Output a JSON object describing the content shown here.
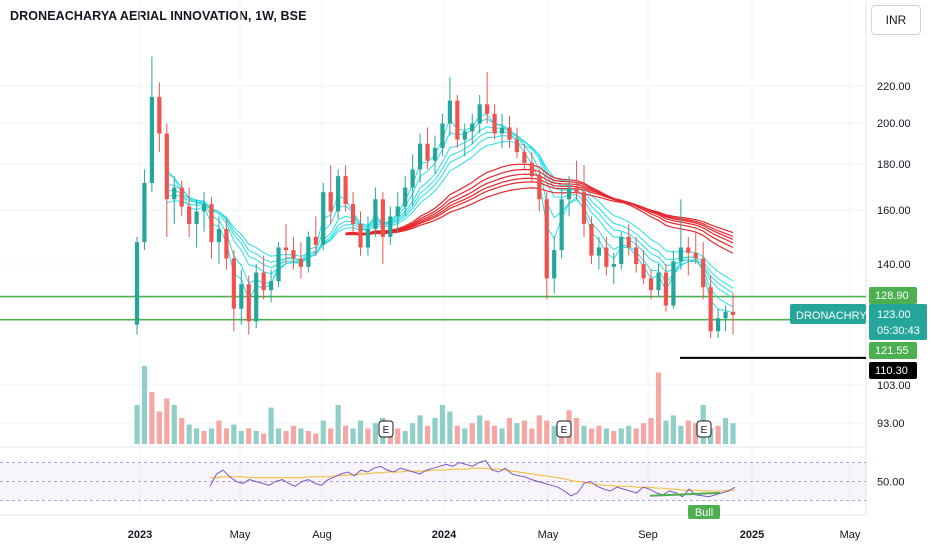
{
  "header": {
    "title": "DRONEACHARYA AERIAL INNOVATION, 1W, BSE",
    "currency": "INR"
  },
  "chart_data": {
    "type": "candlestick",
    "price_axis": {
      "ticks": [
        "220.00",
        "200.00",
        "180.00",
        "160.00",
        "140.00",
        "103.00",
        "93.00"
      ],
      "scale": "log"
    },
    "time_axis": [
      {
        "label": "2023",
        "bold": true
      },
      {
        "label": "May",
        "bold": false
      },
      {
        "label": "Aug",
        "bold": false
      },
      {
        "label": "2024",
        "bold": true
      },
      {
        "label": "May",
        "bold": false
      },
      {
        "label": "Sep",
        "bold": false
      },
      {
        "label": "2025",
        "bold": true
      },
      {
        "label": "May",
        "bold": false
      }
    ],
    "price_badges": {
      "upper_line": "128.90",
      "symbol": "DRONACHRYA",
      "last_price": "123.00",
      "countdown": "05:30:43",
      "lower_line": "121.55",
      "support_line": "110.30"
    },
    "horizontal_lines": [
      {
        "price": 128.9,
        "color": "#4caf50"
      },
      {
        "price": 121.55,
        "color": "#4caf50"
      },
      {
        "price": 110.3,
        "color": "#000000"
      }
    ],
    "candles": [
      [
        120,
        150,
        117,
        148
      ],
      [
        148,
        178,
        145,
        172
      ],
      [
        172,
        237,
        168,
        214
      ],
      [
        214,
        222,
        186,
        195
      ],
      [
        195,
        200,
        150,
        165
      ],
      [
        165,
        175,
        155,
        170
      ],
      [
        170,
        173,
        158,
        162
      ],
      [
        162,
        170,
        150,
        155
      ],
      [
        155,
        165,
        146,
        160
      ],
      [
        160,
        168,
        152,
        163
      ],
      [
        163,
        166,
        142,
        148
      ],
      [
        148,
        158,
        140,
        153
      ],
      [
        153,
        157,
        138,
        142
      ],
      [
        142,
        145,
        118,
        125
      ],
      [
        125,
        138,
        120,
        133
      ],
      [
        133,
        136,
        117,
        121
      ],
      [
        121,
        140,
        119,
        137
      ],
      [
        137,
        143,
        128,
        131
      ],
      [
        131,
        138,
        127,
        134
      ],
      [
        134,
        148,
        132,
        146
      ],
      [
        146,
        155,
        140,
        145
      ],
      [
        145,
        150,
        138,
        142
      ],
      [
        142,
        148,
        135,
        139
      ],
      [
        139,
        152,
        137,
        150
      ],
      [
        150,
        158,
        143,
        147
      ],
      [
        147,
        172,
        145,
        168
      ],
      [
        168,
        180,
        155,
        160
      ],
      [
        160,
        178,
        157,
        175
      ],
      [
        175,
        180,
        160,
        163
      ],
      [
        163,
        168,
        152,
        155
      ],
      [
        155,
        160,
        143,
        146
      ],
      [
        146,
        158,
        143,
        153
      ],
      [
        153,
        170,
        150,
        165
      ],
      [
        165,
        168,
        140,
        150
      ],
      [
        150,
        162,
        147,
        158
      ],
      [
        158,
        168,
        152,
        162
      ],
      [
        162,
        175,
        158,
        170
      ],
      [
        170,
        185,
        162,
        178
      ],
      [
        178,
        195,
        172,
        190
      ],
      [
        190,
        198,
        178,
        182
      ],
      [
        182,
        194,
        176,
        188
      ],
      [
        188,
        205,
        184,
        200
      ],
      [
        200,
        225,
        194,
        212
      ],
      [
        212,
        215,
        188,
        192
      ],
      [
        192,
        200,
        184,
        196
      ],
      [
        196,
        205,
        190,
        200
      ],
      [
        200,
        215,
        195,
        210
      ],
      [
        210,
        228,
        200,
        205
      ],
      [
        205,
        210,
        192,
        195
      ],
      [
        195,
        205,
        188,
        198
      ],
      [
        198,
        204,
        188,
        192
      ],
      [
        192,
        198,
        183,
        186
      ],
      [
        186,
        190,
        178,
        181
      ],
      [
        181,
        186,
        172,
        175
      ],
      [
        175,
        178,
        160,
        165
      ],
      [
        165,
        168,
        128,
        135
      ],
      [
        135,
        150,
        130,
        145
      ],
      [
        145,
        170,
        142,
        165
      ],
      [
        165,
        175,
        158,
        170
      ],
      [
        170,
        182,
        165,
        168
      ],
      [
        168,
        180,
        150,
        155
      ],
      [
        155,
        158,
        140,
        143
      ],
      [
        143,
        150,
        138,
        146
      ],
      [
        146,
        150,
        136,
        139
      ],
      [
        139,
        144,
        133,
        140
      ],
      [
        140,
        152,
        138,
        150
      ],
      [
        150,
        155,
        143,
        146
      ],
      [
        146,
        150,
        137,
        140
      ],
      [
        140,
        145,
        133,
        135
      ],
      [
        135,
        138,
        128,
        131
      ],
      [
        131,
        140,
        129,
        137
      ],
      [
        137,
        140,
        124,
        126
      ],
      [
        126,
        145,
        125,
        141
      ],
      [
        141,
        165,
        138,
        146
      ],
      [
        146,
        150,
        136,
        144
      ],
      [
        144,
        152,
        140,
        142
      ],
      [
        142,
        148,
        128,
        132
      ],
      [
        132,
        136,
        116,
        118
      ],
      [
        118,
        125,
        116,
        122
      ],
      [
        122,
        126,
        118,
        124
      ],
      [
        124,
        130,
        117,
        123
      ]
    ],
    "volume": [
      [
        0.3,
        1
      ],
      [
        0.6,
        1
      ],
      [
        0.4,
        0
      ],
      [
        0.25,
        0
      ],
      [
        0.35,
        0
      ],
      [
        0.3,
        1
      ],
      [
        0.2,
        0
      ],
      [
        0.15,
        1
      ],
      [
        0.12,
        1
      ],
      [
        0.1,
        0
      ],
      [
        0.12,
        1
      ],
      [
        0.18,
        0
      ],
      [
        0.12,
        0
      ],
      [
        0.15,
        1
      ],
      [
        0.1,
        1
      ],
      [
        0.12,
        0
      ],
      [
        0.1,
        1
      ],
      [
        0.08,
        0
      ],
      [
        0.28,
        1
      ],
      [
        0.12,
        1
      ],
      [
        0.1,
        0
      ],
      [
        0.14,
        0
      ],
      [
        0.12,
        1
      ],
      [
        0.1,
        0
      ],
      [
        0.08,
        0
      ],
      [
        0.18,
        1
      ],
      [
        0.12,
        0
      ],
      [
        0.3,
        1
      ],
      [
        0.14,
        0
      ],
      [
        0.12,
        1
      ],
      [
        0.18,
        1
      ],
      [
        0.12,
        0
      ],
      [
        0.16,
        1
      ],
      [
        0.2,
        1
      ],
      [
        0.14,
        0
      ],
      [
        0.12,
        0
      ],
      [
        0.1,
        1
      ],
      [
        0.16,
        1
      ],
      [
        0.22,
        1
      ],
      [
        0.14,
        0
      ],
      [
        0.2,
        1
      ],
      [
        0.3,
        1
      ],
      [
        0.25,
        1
      ],
      [
        0.14,
        0
      ],
      [
        0.12,
        1
      ],
      [
        0.16,
        0
      ],
      [
        0.22,
        1
      ],
      [
        0.18,
        0
      ],
      [
        0.14,
        0
      ],
      [
        0.12,
        1
      ],
      [
        0.2,
        0
      ],
      [
        0.16,
        1
      ],
      [
        0.18,
        0
      ],
      [
        0.12,
        0
      ],
      [
        0.22,
        0
      ],
      [
        0.18,
        0
      ],
      [
        0.14,
        1
      ],
      [
        0.12,
        0
      ],
      [
        0.26,
        0
      ],
      [
        0.2,
        0
      ],
      [
        0.14,
        1
      ],
      [
        0.12,
        0
      ],
      [
        0.14,
        0
      ],
      [
        0.12,
        1
      ],
      [
        0.1,
        0
      ],
      [
        0.12,
        1
      ],
      [
        0.14,
        1
      ],
      [
        0.12,
        0
      ],
      [
        0.16,
        0
      ],
      [
        0.2,
        0
      ],
      [
        0.55,
        0
      ],
      [
        0.18,
        1
      ],
      [
        0.22,
        1
      ],
      [
        0.14,
        1
      ],
      [
        0.18,
        0
      ],
      [
        0.16,
        0
      ],
      [
        0.3,
        1
      ],
      [
        0.12,
        1
      ],
      [
        0.14,
        0
      ],
      [
        0.2,
        1
      ],
      [
        0.16,
        1
      ]
    ],
    "earnings_markers": [
      "E",
      "E",
      "E"
    ],
    "rsi": {
      "level_label": "50.00",
      "divergence_label": "Bull",
      "values": [
        45,
        58,
        62,
        55,
        50,
        48,
        52,
        50,
        48,
        46,
        50,
        52,
        48,
        45,
        50,
        52,
        48,
        46,
        52,
        55,
        58,
        60,
        56,
        62,
        60,
        64,
        66,
        62,
        60,
        64,
        62,
        60,
        58,
        62,
        64,
        66,
        68,
        66,
        70,
        68,
        66,
        70,
        72,
        62,
        60,
        64,
        58,
        56,
        55,
        52,
        50,
        48,
        46,
        44,
        40,
        35,
        38,
        48,
        50,
        45,
        42,
        40,
        44,
        42,
        40,
        38,
        44,
        42,
        38,
        36,
        40,
        38,
        34,
        42,
        36,
        35,
        34,
        36,
        38,
        40,
        44
      ],
      "ma_values": [
        54,
        54,
        55,
        55,
        55,
        55,
        54,
        54,
        54,
        54,
        54,
        54,
        54,
        54,
        54,
        55,
        55,
        55,
        55,
        56,
        56,
        57,
        57,
        58,
        58,
        59,
        59,
        60,
        60,
        60,
        61,
        61,
        61,
        61,
        62,
        62,
        62,
        63,
        63,
        63,
        64,
        64,
        64,
        63,
        63,
        62,
        61,
        60,
        59,
        58,
        57,
        56,
        55,
        54,
        53,
        51,
        50,
        49,
        48,
        47,
        46,
        46,
        45,
        45,
        45,
        44,
        44,
        44,
        43,
        43,
        42,
        42,
        41,
        41,
        41,
        40,
        40,
        40,
        40,
        41,
        41
      ]
    },
    "colors": {
      "up": "#26a69a",
      "down": "#ef5350",
      "volume_up": "#8fcfc8",
      "volume_down": "#f5a7a5",
      "fast_ribbon": "#26e0e6",
      "slow_ribbon": "#e8262c",
      "rsi_line": "#7e57c2",
      "rsi_ma": "#f7b731",
      "bull_divergence": "#4caf50"
    }
  }
}
